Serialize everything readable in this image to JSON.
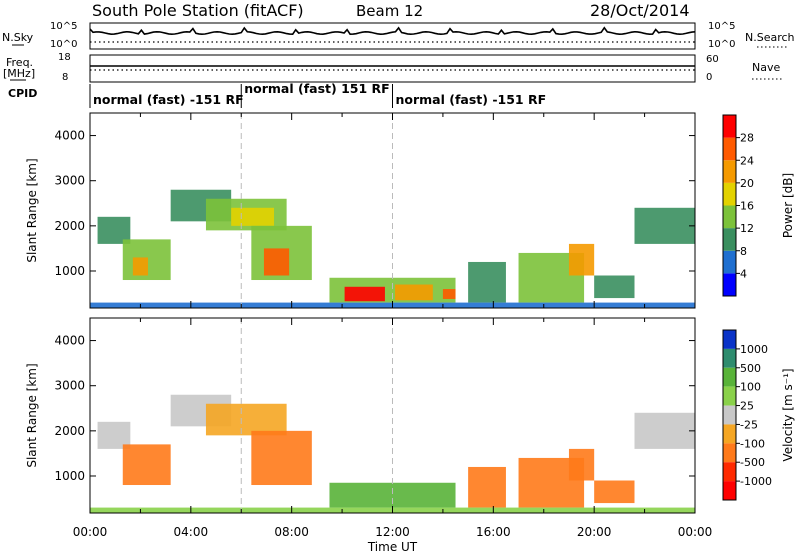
{
  "header": {
    "title": "South Pole Station (fitACF)",
    "beam": "Beam 12",
    "date": "28/Oct/2014"
  },
  "status": {
    "nsky_label": "N.Sky",
    "nsky_ticks": [
      "10^5",
      "10^0"
    ],
    "nsearch_label": "N.Search",
    "nsearch_ticks": [
      "10^5",
      "10^0"
    ],
    "freq_label": "Freq.",
    "freq_unit": "[MHz]",
    "freq_ticks": [
      "18",
      "8"
    ],
    "nave_label": "Nave",
    "nave_ticks": [
      "60",
      "0"
    ],
    "cpid_label": "CPID",
    "cpid_segments": [
      {
        "label": "normal (fast) -151 RF",
        "start": 0,
        "end": 6
      },
      {
        "label": "normal (fast) 151 RF",
        "start": 6,
        "end": 12
      },
      {
        "label": "normal (fast) -151 RF",
        "start": 12,
        "end": 24
      }
    ]
  },
  "chart_data": [
    {
      "type": "heatmap",
      "name": "power",
      "ylabel": "Slant Range [km]",
      "yticks": [
        1000,
        2000,
        3000,
        4000
      ],
      "ylim": [
        180,
        4500
      ],
      "xlim": [
        0,
        24
      ],
      "colorbar": {
        "label": "Power [dB]",
        "ticks": [
          "4",
          "8",
          "12",
          "16",
          "20",
          "24",
          "28"
        ],
        "colors": [
          "#0000ff",
          "#1f6fd0",
          "#3a8f5f",
          "#7cc23a",
          "#e3d200",
          "#f59a00",
          "#ff5a00",
          "#ff0000"
        ]
      },
      "cells": [
        {
          "t0": 0.3,
          "t1": 1.6,
          "r0": 1600,
          "r1": 2200,
          "v": 8
        },
        {
          "t0": 1.3,
          "t1": 3.2,
          "r0": 800,
          "r1": 1700,
          "v": 14
        },
        {
          "t0": 1.7,
          "t1": 2.3,
          "r0": 900,
          "r1": 1300,
          "v": 20
        },
        {
          "t0": 3.2,
          "t1": 5.6,
          "r0": 2100,
          "r1": 2800,
          "v": 9
        },
        {
          "t0": 4.6,
          "t1": 7.8,
          "r0": 1900,
          "r1": 2600,
          "v": 13
        },
        {
          "t0": 5.6,
          "t1": 7.3,
          "r0": 2000,
          "r1": 2400,
          "v": 19
        },
        {
          "t0": 6.4,
          "t1": 8.8,
          "r0": 800,
          "r1": 2000,
          "v": 12
        },
        {
          "t0": 6.9,
          "t1": 7.9,
          "r0": 900,
          "r1": 1500,
          "v": 24
        },
        {
          "t0": 9.5,
          "t1": 14.5,
          "r0": 300,
          "r1": 850,
          "v": 12
        },
        {
          "t0": 10.1,
          "t1": 11.7,
          "r0": 330,
          "r1": 650,
          "v": 28
        },
        {
          "t0": 12.1,
          "t1": 13.6,
          "r0": 350,
          "r1": 700,
          "v": 22
        },
        {
          "t0": 14.0,
          "t1": 14.5,
          "r0": 380,
          "r1": 600,
          "v": 26
        },
        {
          "t0": 15.0,
          "t1": 16.5,
          "r0": 300,
          "r1": 1200,
          "v": 10
        },
        {
          "t0": 17.0,
          "t1": 19.6,
          "r0": 300,
          "r1": 1400,
          "v": 14
        },
        {
          "t0": 19.0,
          "t1": 20.0,
          "r0": 900,
          "r1": 1600,
          "v": 22
        },
        {
          "t0": 20.0,
          "t1": 21.6,
          "r0": 400,
          "r1": 900,
          "v": 9
        },
        {
          "t0": 21.6,
          "t1": 24.0,
          "r0": 1600,
          "r1": 2400,
          "v": 8
        },
        {
          "t0": 0.0,
          "t1": 24.0,
          "r0": 180,
          "r1": 300,
          "v": 6
        }
      ]
    },
    {
      "type": "heatmap",
      "name": "velocity",
      "ylabel": "Slant Range [km]",
      "yticks": [
        1000,
        2000,
        3000,
        4000
      ],
      "ylim": [
        180,
        4500
      ],
      "xlim": [
        0,
        24
      ],
      "colorbar": {
        "label": "Velocity [m s⁻¹]",
        "ticks": [
          "1000",
          "500",
          "100",
          "25",
          "-25",
          "-100",
          "-500",
          "-1000"
        ],
        "colors": [
          "#0a33c8",
          "#2e8c6e",
          "#59b339",
          "#8ad14a",
          "#c8c8c8",
          "#f5a623",
          "#ff7a1a",
          "#ff2a00",
          "#ff0000"
        ]
      },
      "cells": [
        {
          "t0": 0.3,
          "t1": 1.6,
          "r0": 1600,
          "r1": 2200,
          "v": 0
        },
        {
          "t0": 1.3,
          "t1": 3.2,
          "r0": 800,
          "r1": 1700,
          "v": -200
        },
        {
          "t0": 3.2,
          "t1": 5.6,
          "r0": 2100,
          "r1": 2800,
          "v": 0
        },
        {
          "t0": 4.6,
          "t1": 7.8,
          "r0": 1900,
          "r1": 2600,
          "v": -60
        },
        {
          "t0": 6.4,
          "t1": 8.8,
          "r0": 800,
          "r1": 2000,
          "v": -200
        },
        {
          "t0": 9.5,
          "t1": 14.5,
          "r0": 300,
          "r1": 850,
          "v": 300
        },
        {
          "t0": 15.0,
          "t1": 16.5,
          "r0": 300,
          "r1": 1200,
          "v": -200
        },
        {
          "t0": 17.0,
          "t1": 19.6,
          "r0": 300,
          "r1": 1400,
          "v": -150
        },
        {
          "t0": 19.0,
          "t1": 20.0,
          "r0": 900,
          "r1": 1600,
          "v": -400
        },
        {
          "t0": 20.0,
          "t1": 21.6,
          "r0": 400,
          "r1": 900,
          "v": -200
        },
        {
          "t0": 21.6,
          "t1": 24.0,
          "r0": 1600,
          "r1": 2400,
          "v": 0
        },
        {
          "t0": 0.0,
          "t1": 24.0,
          "r0": 180,
          "r1": 300,
          "v": 60
        }
      ]
    }
  ],
  "xaxis": {
    "label": "Time UT",
    "ticks": [
      "00:00",
      "04:00",
      "08:00",
      "12:00",
      "16:00",
      "20:00",
      "00:00"
    ]
  }
}
